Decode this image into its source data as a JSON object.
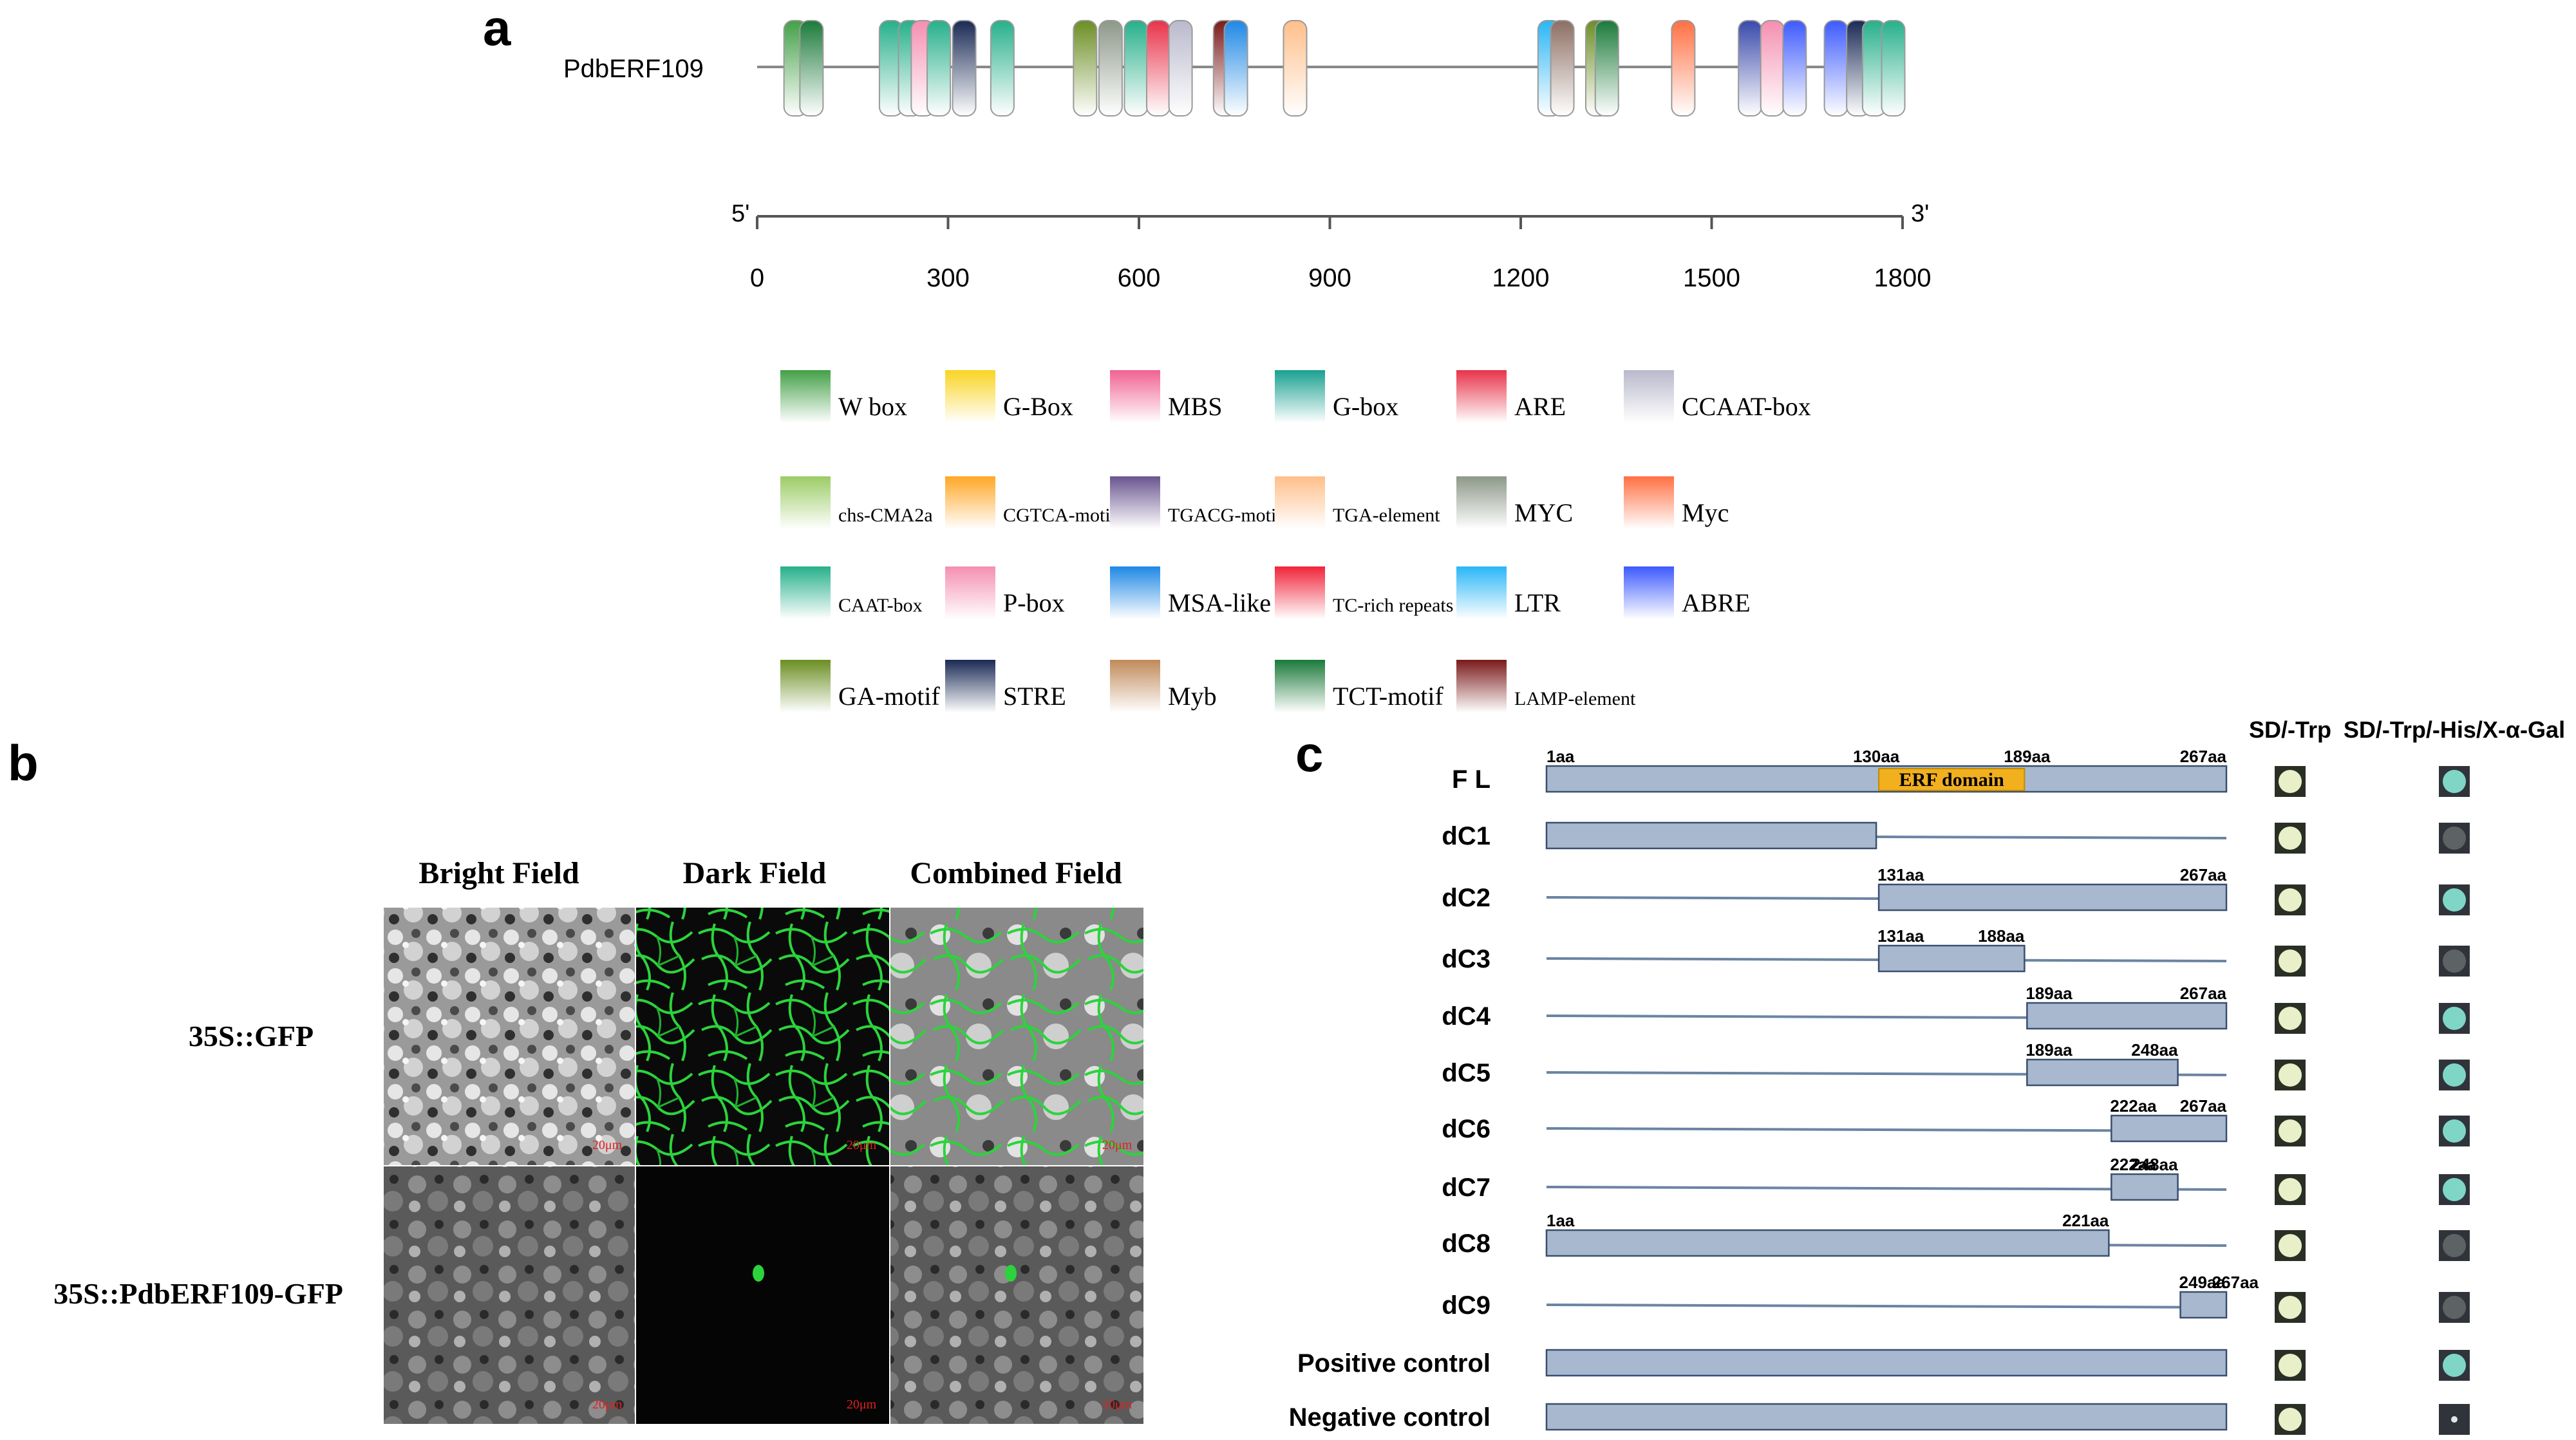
{
  "panel_labels": {
    "a": "a",
    "b": "b",
    "c": "c"
  },
  "panel_a": {
    "gene_name": "PdbERF109",
    "ruler": {
      "start_label": "5'",
      "end_label": "3'",
      "ticks": [
        "0",
        "300",
        "600",
        "900",
        "1200",
        "1500",
        "1800"
      ],
      "min": 0,
      "max": 1800
    },
    "elements": [
      {
        "pos": 30,
        "color": "#43a047"
      },
      {
        "pos": 55,
        "color": "#1b7a3a"
      },
      {
        "pos": 180,
        "color": "#26b08a"
      },
      {
        "pos": 210,
        "color": "#26b08a"
      },
      {
        "pos": 230,
        "color": "#f48fb1"
      },
      {
        "pos": 255,
        "color": "#26b08a"
      },
      {
        "pos": 295,
        "color": "#1a2a55"
      },
      {
        "pos": 355,
        "color": "#26b08a"
      },
      {
        "pos": 485,
        "color": "#6b8e23"
      },
      {
        "pos": 525,
        "color": "#8d9889"
      },
      {
        "pos": 565,
        "color": "#26b08a"
      },
      {
        "pos": 600,
        "color": "#e8334a"
      },
      {
        "pos": 635,
        "color": "#b9b9cc"
      },
      {
        "pos": 705,
        "color": "#7a1a1a"
      },
      {
        "pos": 722,
        "color": "#1e88e5"
      },
      {
        "pos": 815,
        "color": "#ffbf8a"
      },
      {
        "pos": 1215,
        "color": "#29b6f6"
      },
      {
        "pos": 1235,
        "color": "#8d6e63"
      },
      {
        "pos": 1290,
        "color": "#6b8e23"
      },
      {
        "pos": 1305,
        "color": "#1b7a3a"
      },
      {
        "pos": 1425,
        "color": "#ff7043"
      },
      {
        "pos": 1530,
        "color": "#3949ab"
      },
      {
        "pos": 1565,
        "color": "#f48fb1"
      },
      {
        "pos": 1600,
        "color": "#3d5afe"
      },
      {
        "pos": 1665,
        "color": "#3d5afe"
      },
      {
        "pos": 1700,
        "color": "#1a2a55"
      },
      {
        "pos": 1725,
        "color": "#26b08a"
      },
      {
        "pos": 1755,
        "color": "#26b08a"
      }
    ],
    "legend": [
      [
        {
          "label": "W box",
          "color": "#43a047"
        },
        {
          "label": "G-Box",
          "color": "#f9d423"
        },
        {
          "label": "MBS",
          "color": "#f06292"
        },
        {
          "label": "G-box",
          "color": "#1aa090"
        },
        {
          "label": "ARE",
          "color": "#e8334a"
        },
        {
          "label": "CCAAT-box",
          "color": "#b9b9cc"
        }
      ],
      [
        {
          "label": "chs-CMA2a",
          "color": "#9ccc65"
        },
        {
          "label": "CGTCA-motif",
          "color": "#ffa726"
        },
        {
          "label": "TGACG-motif",
          "color": "#6a5590"
        },
        {
          "label": "TGA-element",
          "color": "#ffbf8a"
        },
        {
          "label": "MYC",
          "color": "#8d9889"
        },
        {
          "label": "Myc",
          "color": "#ff7043"
        }
      ],
      [
        {
          "label": "CAAT-box",
          "color": "#26b08a"
        },
        {
          "label": "P-box",
          "color": "#f48fb1"
        },
        {
          "label": "MSA-like",
          "color": "#1e88e5"
        },
        {
          "label": "TC-rich repeats",
          "color": "#f0243a"
        },
        {
          "label": "LTR",
          "color": "#29b6f6"
        },
        {
          "label": "ABRE",
          "color": "#3d5afe"
        }
      ],
      [
        {
          "label": "GA-motif",
          "color": "#6b8e23"
        },
        {
          "label": "STRE",
          "color": "#1a2a55"
        },
        {
          "label": "Myb",
          "color": "#c08a5a"
        },
        {
          "label": "TCT-motif",
          "color": "#1b7a3a"
        },
        {
          "label": "LAMP-element",
          "color": "#7a1a1a"
        }
      ]
    ]
  },
  "panel_b": {
    "columns": [
      "Bright Field",
      "Dark Field",
      "Combined Field"
    ],
    "rows": [
      "35S::GFP",
      "35S::PdbERF109-GFP"
    ],
    "scale_bar": "20μm"
  },
  "panel_c": {
    "column_headers": [
      "SD/-Trp",
      "SD/-Trp/-His/X-α-Gal"
    ],
    "domain_label": "ERF domain",
    "total_length": 267,
    "constructs": [
      {
        "name": "F L",
        "segments": [
          {
            "start": 1,
            "end": 267
          }
        ],
        "labels": [
          {
            "text": "1aa",
            "at": 1
          },
          {
            "text": "130aa",
            "at": 130
          },
          {
            "text": "189aa",
            "at": 189
          },
          {
            "text": "267aa",
            "at": 267
          }
        ],
        "domain": [
          130,
          189
        ],
        "sd_trp": "growth",
        "x_gal": "blue"
      },
      {
        "name": "dC1",
        "segments": [
          {
            "start": 1,
            "end": 130
          }
        ],
        "labels": [],
        "sd_trp": "growth",
        "x_gal": "none"
      },
      {
        "name": "dC2",
        "segments": [
          {
            "start": 131,
            "end": 267
          }
        ],
        "labels": [
          {
            "text": "131aa",
            "at": 131
          },
          {
            "text": "267aa",
            "at": 267
          }
        ],
        "sd_trp": "growth",
        "x_gal": "blue"
      },
      {
        "name": "dC3",
        "segments": [
          {
            "start": 131,
            "end": 188
          }
        ],
        "labels": [
          {
            "text": "131aa",
            "at": 131
          },
          {
            "text": "188aa",
            "at": 188
          }
        ],
        "sd_trp": "growth",
        "x_gal": "none"
      },
      {
        "name": "dC4",
        "segments": [
          {
            "start": 189,
            "end": 267
          }
        ],
        "labels": [
          {
            "text": "189aa",
            "at": 189
          },
          {
            "text": "267aa",
            "at": 267
          }
        ],
        "sd_trp": "growth",
        "x_gal": "blue"
      },
      {
        "name": "dC5",
        "segments": [
          {
            "start": 189,
            "end": 248
          }
        ],
        "labels": [
          {
            "text": "189aa",
            "at": 189
          },
          {
            "text": "248aa",
            "at": 248
          }
        ],
        "sd_trp": "growth",
        "x_gal": "blue"
      },
      {
        "name": "dC6",
        "segments": [
          {
            "start": 222,
            "end": 267
          }
        ],
        "labels": [
          {
            "text": "222aa",
            "at": 222
          },
          {
            "text": "267aa",
            "at": 267
          }
        ],
        "sd_trp": "growth",
        "x_gal": "blue"
      },
      {
        "name": "dC7",
        "segments": [
          {
            "start": 222,
            "end": 248
          }
        ],
        "labels": [
          {
            "text": "222aa",
            "at": 222
          },
          {
            "text": "248aa",
            "at": 248
          }
        ],
        "sd_trp": "growth",
        "x_gal": "blue"
      },
      {
        "name": "dC8",
        "segments": [
          {
            "start": 1,
            "end": 221
          }
        ],
        "labels": [
          {
            "text": "1aa",
            "at": 1
          },
          {
            "text": "221aa",
            "at": 221
          }
        ],
        "sd_trp": "growth",
        "x_gal": "none"
      },
      {
        "name": "dC9",
        "segments": [
          {
            "start": 249,
            "end": 267
          }
        ],
        "labels": [
          {
            "text": "249aa",
            "at": 249
          },
          {
            "text": "267aa",
            "at": 267
          }
        ],
        "sd_trp": "growth",
        "x_gal": "none"
      },
      {
        "name": "Positive control",
        "segments": [
          {
            "start": 1,
            "end": 267
          }
        ],
        "labels": [],
        "sd_trp": "growth",
        "x_gal": "blue"
      },
      {
        "name": "Negative control",
        "segments": [
          {
            "start": 1,
            "end": 267
          }
        ],
        "labels": [],
        "sd_trp": "growth",
        "x_gal": "none"
      }
    ]
  }
}
